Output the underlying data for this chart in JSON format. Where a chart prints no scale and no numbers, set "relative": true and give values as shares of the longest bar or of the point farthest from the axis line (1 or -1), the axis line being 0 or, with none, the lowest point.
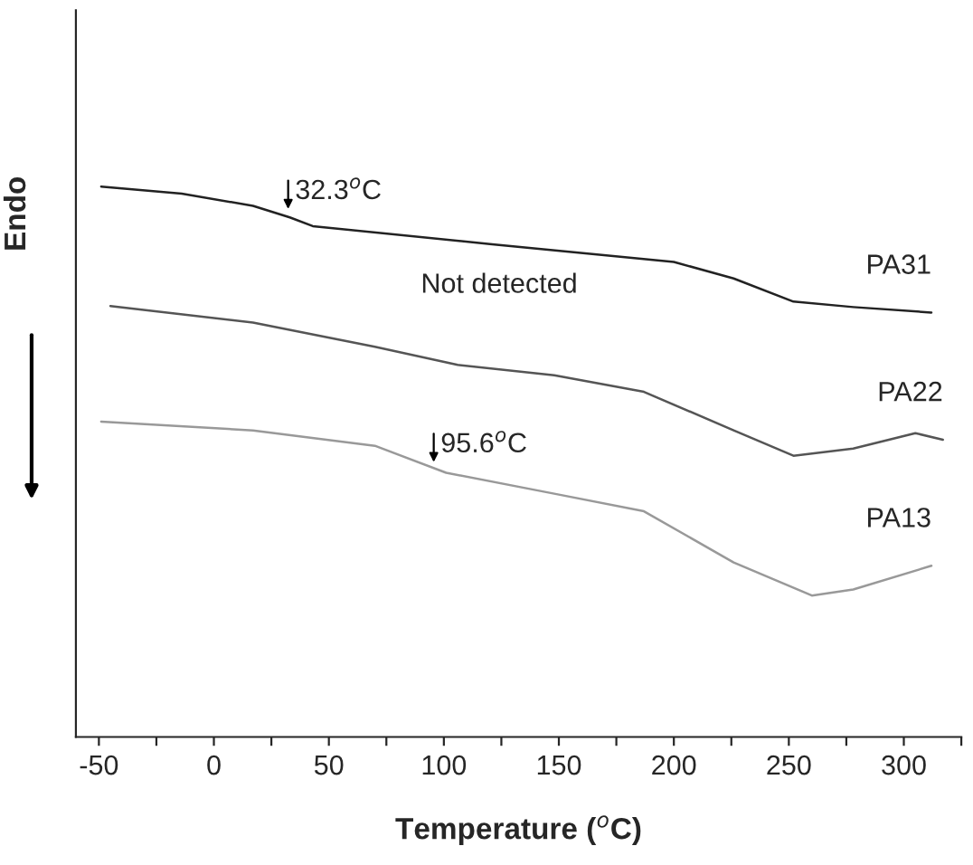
{
  "chart_data": {
    "type": "line",
    "relative": true,
    "xlabel": "Temperature ($^{o}$C)",
    "ylabel": "Endo",
    "xlim": [
      -60,
      325
    ],
    "xticks": [
      -50,
      {
        "value": -25,
        "label": null
      },
      0,
      {
        "value": 25,
        "label": null
      },
      50,
      {
        "value": 75,
        "label": null
      },
      100,
      {
        "value": 125,
        "label": null
      },
      150,
      {
        "value": 175,
        "label": null
      },
      200,
      {
        "value": 225,
        "label": null
      },
      250,
      {
        "value": 275,
        "label": null
      },
      300,
      {
        "value": 325,
        "label": null
      }
    ],
    "grid": false,
    "legend": false,
    "tick_labels": "x",
    "series": [
      {
        "name": "PA31",
        "color": "#222222",
        "x": [
          -49,
          -14,
          17,
          33,
          43,
          121,
          200,
          226,
          252,
          278,
          312
        ],
        "values": [
          1.0,
          0.987,
          0.965,
          0.944,
          0.928,
          0.895,
          0.863,
          0.833,
          0.791,
          0.781,
          0.771
        ]
      },
      {
        "name": "PA22",
        "color": "#555555",
        "x": [
          -45,
          17,
          70,
          106,
          148,
          187,
          226,
          252,
          278,
          305,
          317
        ],
        "values": [
          0.783,
          0.753,
          0.709,
          0.676,
          0.657,
          0.627,
          0.557,
          0.511,
          0.524,
          0.552,
          0.54
        ]
      },
      {
        "name": "PA13",
        "color": "#999999",
        "x": [
          -49,
          17,
          70,
          101,
          148,
          187,
          226,
          260,
          278,
          312
        ],
        "values": [
          0.573,
          0.557,
          0.529,
          0.48,
          0.442,
          0.41,
          0.317,
          0.257,
          0.268,
          0.311
        ]
      }
    ],
    "annotations": [
      {
        "text": "32.3$^{o}$C",
        "x": 32.3,
        "y": 0.95
      },
      "Not detected",
      {
        "text": "95.6$^{o}$C",
        "x": 95.6,
        "y": 0.49
      }
    ]
  }
}
